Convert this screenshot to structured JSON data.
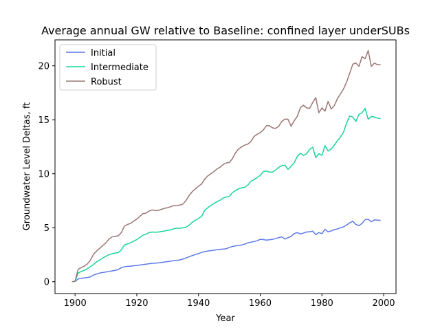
{
  "chart_data": {
    "type": "line",
    "title": "Average annual GW relative to Baseline: confined layer underSUBs",
    "xlabel": "Year",
    "ylabel": "Groundwater Level Deltas, ft",
    "xlim": [
      1893.5,
      2004
    ],
    "ylim": [
      -1.1,
      22.4
    ],
    "xticks": [
      1900,
      1920,
      1940,
      1960,
      1980,
      2000
    ],
    "yticks": [
      0,
      5,
      10,
      15,
      20
    ],
    "grid": false,
    "legend_position": "top-left",
    "x": [
      1899,
      1900,
      1901,
      1902,
      1903,
      1904,
      1905,
      1906,
      1907,
      1908,
      1909,
      1910,
      1911,
      1912,
      1913,
      1914,
      1915,
      1916,
      1917,
      1918,
      1919,
      1920,
      1921,
      1922,
      1923,
      1924,
      1925,
      1926,
      1927,
      1928,
      1929,
      1930,
      1931,
      1932,
      1933,
      1934,
      1935,
      1936,
      1937,
      1938,
      1939,
      1940,
      1941,
      1942,
      1943,
      1944,
      1945,
      1946,
      1947,
      1948,
      1949,
      1950,
      1951,
      1952,
      1953,
      1954,
      1955,
      1956,
      1957,
      1958,
      1959,
      1960,
      1961,
      1962,
      1963,
      1964,
      1965,
      1966,
      1967,
      1968,
      1969,
      1970,
      1971,
      1972,
      1973,
      1974,
      1975,
      1976,
      1977,
      1978,
      1979,
      1980,
      1981,
      1982,
      1983,
      1984,
      1985,
      1986,
      1987,
      1988,
      1989,
      1990,
      1991,
      1992,
      1993,
      1994,
      1995,
      1996,
      1997,
      1998,
      1999
    ],
    "series": [
      {
        "name": "Initial",
        "color": "#5b78e8",
        "values": [
          0,
          0.02,
          0.25,
          0.32,
          0.35,
          0.38,
          0.45,
          0.62,
          0.72,
          0.8,
          0.85,
          0.9,
          0.95,
          1,
          1.05,
          1.12,
          1.3,
          1.38,
          1.42,
          1.44,
          1.47,
          1.5,
          1.54,
          1.58,
          1.62,
          1.66,
          1.7,
          1.72,
          1.74,
          1.78,
          1.82,
          1.86,
          1.9,
          1.95,
          1.98,
          2.02,
          2.1,
          2.2,
          2.32,
          2.42,
          2.52,
          2.6,
          2.72,
          2.78,
          2.84,
          2.88,
          2.92,
          2.96,
          3,
          3.02,
          3.05,
          3.18,
          3.26,
          3.32,
          3.36,
          3.4,
          3.48,
          3.6,
          3.66,
          3.72,
          3.8,
          3.92,
          3.9,
          3.85,
          3.88,
          3.92,
          4,
          4.08,
          4.15,
          3.95,
          4.08,
          4.2,
          4.45,
          4.55,
          4.42,
          4.5,
          4.6,
          4.62,
          4.68,
          4.35,
          4.55,
          4.45,
          4.85,
          4.62,
          4.7,
          4.82,
          4.88,
          5,
          5.08,
          5.25,
          5.45,
          5.6,
          5.3,
          5.2,
          5.4,
          5.75,
          5.78,
          5.55,
          5.72,
          5.7,
          5.68
        ]
      },
      {
        "name": "Intermediate",
        "color": "#17d39a",
        "values": [
          0,
          0.02,
          0.8,
          0.95,
          1.05,
          1.2,
          1.4,
          1.6,
          1.85,
          2,
          2.2,
          2.35,
          2.5,
          2.6,
          2.65,
          2.7,
          2.95,
          3.4,
          3.5,
          3.6,
          3.75,
          3.9,
          4.1,
          4.3,
          4.4,
          4.55,
          4.6,
          4.58,
          4.6,
          4.65,
          4.7,
          4.75,
          4.8,
          4.9,
          4.95,
          4.95,
          5,
          5.05,
          5.25,
          5.5,
          5.7,
          5.85,
          6.05,
          6.6,
          6.85,
          7.05,
          7.25,
          7.4,
          7.55,
          7.75,
          7.85,
          7.9,
          8.25,
          8.45,
          8.6,
          8.7,
          8.75,
          8.95,
          9.3,
          9.45,
          9.65,
          9.85,
          10.2,
          10.25,
          10.15,
          10.15,
          10.35,
          10.6,
          10.75,
          10.8,
          10.4,
          10.7,
          11,
          11.6,
          11.9,
          11.7,
          11.85,
          12.25,
          12.45,
          11.5,
          11.85,
          11.7,
          12.6,
          12.1,
          12.3,
          12.65,
          13.05,
          13.4,
          13.85,
          14.7,
          15.35,
          15.25,
          14.85,
          15.5,
          15.65,
          16.05,
          15.05,
          15.3,
          15.25,
          15.15,
          15.1
        ]
      },
      {
        "name": "Robust",
        "color": "#9a7571",
        "values": [
          0,
          0.05,
          1.15,
          1.3,
          1.45,
          1.65,
          2,
          2.55,
          2.85,
          3.1,
          3.35,
          3.6,
          3.95,
          4.15,
          4.2,
          4.25,
          4.55,
          5.15,
          5.3,
          5.4,
          5.6,
          5.8,
          6.05,
          6.3,
          6.35,
          6.55,
          6.65,
          6.6,
          6.6,
          6.7,
          6.8,
          6.85,
          6.95,
          7.05,
          7.05,
          7.1,
          7.2,
          7.55,
          8,
          8.35,
          8.6,
          8.85,
          9.05,
          9.5,
          9.8,
          10,
          10.2,
          10.45,
          10.6,
          10.85,
          11,
          11.05,
          11.4,
          11.95,
          12.3,
          12.5,
          12.65,
          12.75,
          13,
          13.45,
          13.65,
          13.8,
          14.05,
          14.45,
          14.45,
          14.25,
          14.2,
          14.4,
          14.85,
          15.05,
          15.05,
          14.4,
          14.9,
          15.3,
          16.1,
          16.35,
          16.1,
          16.05,
          16.6,
          17.05,
          15.65,
          16.1,
          15.8,
          16.7,
          16,
          16.3,
          16.95,
          17.4,
          17.85,
          18.5,
          19.3,
          20.15,
          20.25,
          19.95,
          20.85,
          20.65,
          21.4,
          19.95,
          20.25,
          20.1,
          20.1
        ]
      }
    ]
  }
}
